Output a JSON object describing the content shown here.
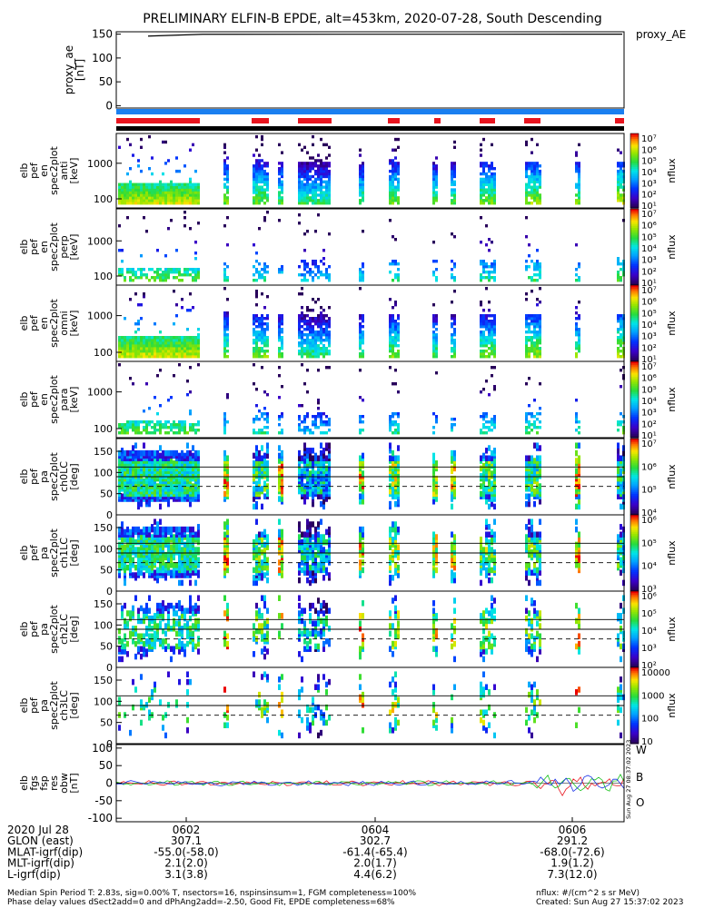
{
  "title": "PRELIMINARY ELFIN-B EPDE, alt=453km, 2020-07-28, South Descending",
  "side_label": "proxy_AE",
  "colors": {
    "band_blue": "#1a7ff0",
    "band_red": "#e8141e",
    "band_black": "#000000"
  },
  "chart_data": [
    {
      "type": "line",
      "name": "proxy_ae",
      "ylabel": [
        "proxy_ae",
        "[nT]"
      ],
      "yticks": [
        "150",
        "100",
        "50",
        "0"
      ],
      "ylim": [
        -5,
        155
      ],
      "x": [
        0,
        1
      ],
      "values": [
        146,
        150
      ]
    },
    {
      "type": "heatmap",
      "name": "pef_en_anti",
      "ylabel": [
        "elb",
        "pef",
        "en",
        "spec2plot",
        "anti",
        "[keV]"
      ],
      "yticks": [
        "1000",
        "100"
      ],
      "scale": "log",
      "cbar_ticks": [
        "10⁷",
        "10⁶",
        "10⁵",
        "10⁴",
        "10³",
        "10²",
        "10¹"
      ],
      "cbar_label": "nflux"
    },
    {
      "type": "heatmap",
      "name": "pef_en_perp",
      "ylabel": [
        "elb",
        "pef",
        "en",
        "spec2plot",
        "perp",
        "[keV]"
      ],
      "yticks": [
        "1000",
        "100"
      ],
      "scale": "log",
      "cbar_ticks": [
        "10⁷",
        "10⁶",
        "10⁵",
        "10⁴",
        "10³",
        "10²",
        "10¹"
      ],
      "cbar_label": "nflux"
    },
    {
      "type": "heatmap",
      "name": "pef_en_omni",
      "ylabel": [
        "elb",
        "pef",
        "en",
        "spec2plot",
        "omni",
        "[keV]"
      ],
      "yticks": [
        "1000",
        "100"
      ],
      "scale": "log",
      "cbar_ticks": [
        "10⁷",
        "10⁶",
        "10⁵",
        "10⁴",
        "10³",
        "10²",
        "10¹"
      ],
      "cbar_label": "nflux"
    },
    {
      "type": "heatmap",
      "name": "pef_en_para",
      "ylabel": [
        "elb",
        "pef",
        "en",
        "spec2plot",
        "para",
        "[keV]"
      ],
      "yticks": [
        "1000",
        "100"
      ],
      "scale": "log",
      "cbar_ticks": [
        "10⁷",
        "10⁶",
        "10⁵",
        "10⁴",
        "10³",
        "10²",
        "10¹"
      ],
      "cbar_label": "nflux"
    },
    {
      "type": "heatmap",
      "name": "pef_pa_ch0",
      "ylabel": [
        "elb",
        "pef",
        "pa",
        "spec2plot",
        "ch0LC",
        "[deg]"
      ],
      "yticks": [
        "150",
        "100",
        "50",
        "0"
      ],
      "ylim": [
        0,
        180
      ],
      "hlines": [
        113,
        90
      ],
      "dashed": 67,
      "cbar_ticks": [
        "10⁷",
        "10⁶",
        "10⁵",
        "10⁴"
      ],
      "cbar_label": "nflux"
    },
    {
      "type": "heatmap",
      "name": "pef_pa_ch1",
      "ylabel": [
        "elb",
        "pef",
        "pa",
        "spec2plot",
        "ch1LC",
        "[deg]"
      ],
      "yticks": [
        "150",
        "100",
        "50",
        "0"
      ],
      "ylim": [
        0,
        180
      ],
      "hlines": [
        113,
        90
      ],
      "dashed": 67,
      "cbar_ticks": [
        "10⁶",
        "10⁵",
        "10⁴",
        "10³"
      ],
      "cbar_label": "nflux"
    },
    {
      "type": "heatmap",
      "name": "pef_pa_ch2",
      "ylabel": [
        "elb",
        "pef",
        "pa",
        "spec2plot",
        "ch2LC",
        "[deg]"
      ],
      "yticks": [
        "150",
        "100",
        "50",
        "0"
      ],
      "ylim": [
        0,
        180
      ],
      "hlines": [
        113,
        90
      ],
      "dashed": 67,
      "cbar_ticks": [
        "10⁶",
        "10⁵",
        "10⁴",
        "10³",
        "10²"
      ],
      "cbar_label": "nflux"
    },
    {
      "type": "heatmap",
      "name": "pef_pa_ch3",
      "ylabel": [
        "elb",
        "pef",
        "pa",
        "spec2plot",
        "ch3LC",
        "[deg]"
      ],
      "yticks": [
        "150",
        "100",
        "50",
        "0"
      ],
      "ylim": [
        0,
        180
      ],
      "hlines": [
        113,
        90
      ],
      "dashed": 67,
      "cbar_ticks": [
        "10000",
        "1000",
        "100",
        "10"
      ],
      "cbar_label": "nflux"
    },
    {
      "type": "line",
      "name": "fgs_res_obw",
      "ylabel": [
        "elb",
        "fgs",
        "fsp",
        "res",
        "obw",
        "[nT]"
      ],
      "yticks": [
        "100",
        "50",
        "0",
        "-50",
        "-100"
      ],
      "ylim": [
        -110,
        110
      ],
      "legend": [
        "W",
        "B",
        "O"
      ],
      "legend_colors": [
        "#e8141e",
        "#19c21d",
        "#1a33e8"
      ]
    }
  ],
  "stamp": "Sun Aug 27 08:37:02 2023",
  "xaxis": {
    "rows": [
      {
        "label": "2020 Jul 28",
        "values": [
          "0602",
          "0604",
          "0606"
        ]
      },
      {
        "label": "GLON (east)",
        "values": [
          "307.1",
          "302.7",
          "291.2"
        ]
      },
      {
        "label": "MLAT-igrf(dip)",
        "values": [
          "-55.0(-58.0)",
          "-61.4(-65.4)",
          "-68.0(-72.6)"
        ]
      },
      {
        "label": "MLT-igrf(dip)",
        "values": [
          "2.1(2.0)",
          "2.0(1.7)",
          "1.9(1.2)"
        ]
      },
      {
        "label": "L-igrf(dip)",
        "values": [
          "3.1(3.8)",
          "4.4(6.2)",
          "7.3(12.0)"
        ]
      }
    ]
  },
  "footer": {
    "line1": "Median Spin Period T: 2.83s, sig=0.00% T, nsectors=16, nspinsinsum=1, FGM completeness=100%",
    "line2": "Phase delay values dSect2add=0 and dPhAng2add=-2.50, Good Fit, EPDE completeness=68%",
    "right1": "nflux: #/(cm^2 s sr MeV)",
    "right2": "Created: Sun Aug 27 15:37:02 2023"
  }
}
